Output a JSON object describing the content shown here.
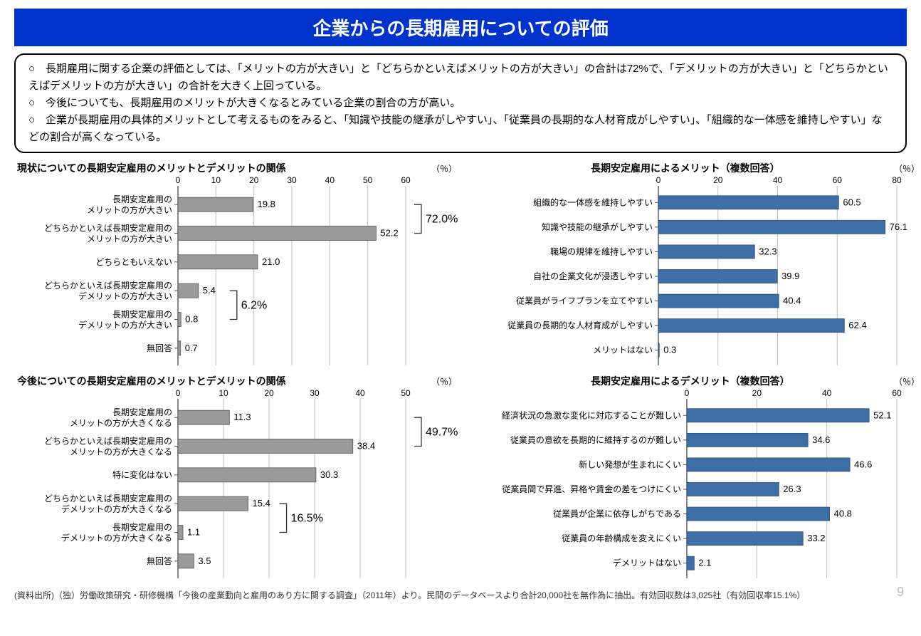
{
  "banner": "企業からの長期雇用についての評価",
  "summary": {
    "lines": [
      "○　長期雇用に関する企業の評価としては、「メリットの方が大きい」と「どちらかといえばメリットの方が大きい」の合計は72%で、「デメリットの方が大きい」と「どちらかといえばデメリットの方が大きい」の合計を大きく上回っている。",
      "○　今後についても、長期雇用のメリットが大きくなるとみている企業の割合の方が高い。",
      "○　企業が長期雇用の具体的メリットとして考えるものをみると、「知識や技能の継承がしやすい」、「従業員の長期的な人材育成がしやすい」、「組織的な一体感を維持しやすい」などの割合が高くなっている。"
    ]
  },
  "unit_label": "（％）",
  "chart_a": {
    "title": "現状についての長期安定雇用のメリットとデメリットの関係",
    "type": "bar-horizontal",
    "xmax": 60,
    "xtick_step": 10,
    "bar_color": "#9a9a9a",
    "bar_stroke": "#555",
    "grid_color": "#bfbfbf",
    "rows": [
      {
        "label_lines": [
          "長期安定雇用の",
          "メリットの方が大きい"
        ],
        "v": 19.8
      },
      {
        "label_lines": [
          "どちらかといえば長期安定雇用の",
          "メリットの方が大きい"
        ],
        "v": 52.2
      },
      {
        "label_lines": [
          "どちらともいえない"
        ],
        "v": 21.0
      },
      {
        "label_lines": [
          "どちらかといえば長期安定雇用の",
          "デメリットの方が大きい"
        ],
        "v": 5.4
      },
      {
        "label_lines": [
          "長期安定雇用の",
          "デメリットの方が大きい"
        ],
        "v": 0.8
      },
      {
        "label_lines": [
          "無回答"
        ],
        "v": 0.7
      }
    ],
    "brackets": [
      {
        "from": 0,
        "to": 1,
        "label": "72.0%"
      },
      {
        "from": 3,
        "to": 4,
        "label": "6.2%",
        "left_side": true
      }
    ]
  },
  "chart_b": {
    "title": "今後についての長期安定雇用のメリットとデメリットの関係",
    "type": "bar-horizontal",
    "xmax": 50,
    "xtick_step": 10,
    "bar_color": "#9a9a9a",
    "bar_stroke": "#555",
    "grid_color": "#bfbfbf",
    "rows": [
      {
        "label_lines": [
          "長期安定雇用の",
          "メリットの方が大きくなる"
        ],
        "v": 11.3
      },
      {
        "label_lines": [
          "どちらかといえば長期安定雇用の",
          "メリットの方が大きくなる"
        ],
        "v": 38.4
      },
      {
        "label_lines": [
          "特に変化はない"
        ],
        "v": 30.3
      },
      {
        "label_lines": [
          "どちらかといえば長期安定雇用の",
          "デメリットの方が大きくなる"
        ],
        "v": 15.4
      },
      {
        "label_lines": [
          "長期安定雇用の",
          "デメリットの方が大きくなる"
        ],
        "v": 1.1
      },
      {
        "label_lines": [
          "無回答"
        ],
        "v": 3.5
      }
    ],
    "brackets": [
      {
        "from": 0,
        "to": 1,
        "label": "49.7%"
      },
      {
        "from": 3,
        "to": 4,
        "label": "16.5%",
        "left_side": true
      }
    ]
  },
  "chart_c": {
    "title": "長期安定雇用によるメリット（複数回答）",
    "type": "bar-horizontal",
    "xmax": 80,
    "xtick_step": 20,
    "bar_color": "#3d6fa6",
    "bar_stroke": "#2a4f78",
    "grid_color": "#bfbfbf",
    "rows": [
      {
        "label_lines": [
          "組織的な一体感を維持しやすい"
        ],
        "v": 60.5
      },
      {
        "label_lines": [
          "知識や技能の継承がしやすい"
        ],
        "v": 76.1
      },
      {
        "label_lines": [
          "職場の規律を維持しやすい"
        ],
        "v": 32.3
      },
      {
        "label_lines": [
          "自社の企業文化が浸透しやすい"
        ],
        "v": 39.9
      },
      {
        "label_lines": [
          "従業員がライフプランを立てやすい"
        ],
        "v": 40.4
      },
      {
        "label_lines": [
          "従業員の長期的な人材育成がしやすい"
        ],
        "v": 62.4
      },
      {
        "label_lines": [
          "メリットはない"
        ],
        "v": 0.3
      }
    ]
  },
  "chart_d": {
    "title": "長期安定雇用によるデメリット（複数回答）",
    "type": "bar-horizontal",
    "xmax": 60,
    "xtick_step": 20,
    "bar_color": "#3d6fa6",
    "bar_stroke": "#2a4f78",
    "grid_color": "#bfbfbf",
    "rows": [
      {
        "label_lines": [
          "経済状況の急激な変化に対応することが難しい"
        ],
        "v": 52.1
      },
      {
        "label_lines": [
          "従業員の意欲を長期的に維持するのが難しい"
        ],
        "v": 34.6
      },
      {
        "label_lines": [
          "新しい発想が生まれにくい"
        ],
        "v": 46.6
      },
      {
        "label_lines": [
          "従業員間で昇進、昇格や賃金の差をつけにくい"
        ],
        "v": 26.3
      },
      {
        "label_lines": [
          "従業員が企業に依存しがちである"
        ],
        "v": 40.8
      },
      {
        "label_lines": [
          "従業員の年齢構成を変えにくい"
        ],
        "v": 33.2
      },
      {
        "label_lines": [
          "デメリットはない"
        ],
        "v": 2.1
      }
    ]
  },
  "footnote": "(資料出所)（独）労働政策研究・研修機構「今後の産業動向と雇用のあり方に関する調査」（2011年）より。民間のデータベースより合計20,000社を無作為に抽出。有効回収数は3,025社（有効回収率15.1%）",
  "page_number": "9",
  "style": {
    "label_fontsize": 12,
    "value_fontsize": 13,
    "tick_fontsize": 12,
    "bracket_fontsize": 16,
    "bracket_color": "#333"
  }
}
